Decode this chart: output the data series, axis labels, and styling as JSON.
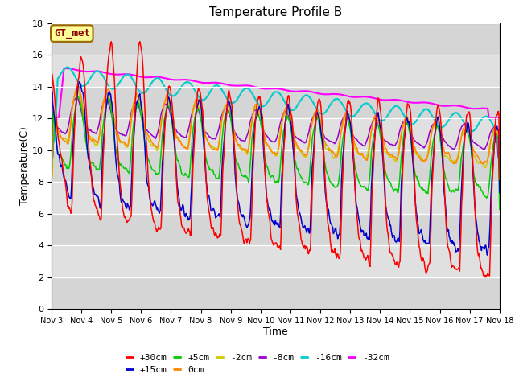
{
  "title": "Temperature Profile B",
  "xlabel": "Time",
  "ylabel": "Temperature(C)",
  "ylim": [
    0,
    18
  ],
  "background_color": "#ffffff",
  "plot_bg_color": "#e0e0e0",
  "legend_label": "GT_met",
  "legend_box_facecolor": "#ffff99",
  "legend_box_edgecolor": "#996600",
  "series_colors": {
    "+30cm": "#ff0000",
    "+15cm": "#0000cc",
    "+5cm": "#00cc00",
    "0cm": "#ff8800",
    "-2cm": "#cccc00",
    "-8cm": "#9900cc",
    "-16cm": "#00cccc",
    "-32cm": "#ff00ff"
  },
  "tick_labels": [
    "Nov 3",
    "Nov 4",
    "Nov 5",
    "Nov 6",
    "Nov 7",
    "Nov 8",
    "Nov 9",
    "Nov 10",
    "Nov 11",
    "Nov 12",
    "Nov 13",
    "Nov 14",
    "Nov 15",
    "Nov 16",
    "Nov 17",
    "Nov 18"
  ],
  "yticks": [
    0,
    2,
    4,
    6,
    8,
    10,
    12,
    14,
    16,
    18
  ],
  "days": 15,
  "n_points": 721
}
